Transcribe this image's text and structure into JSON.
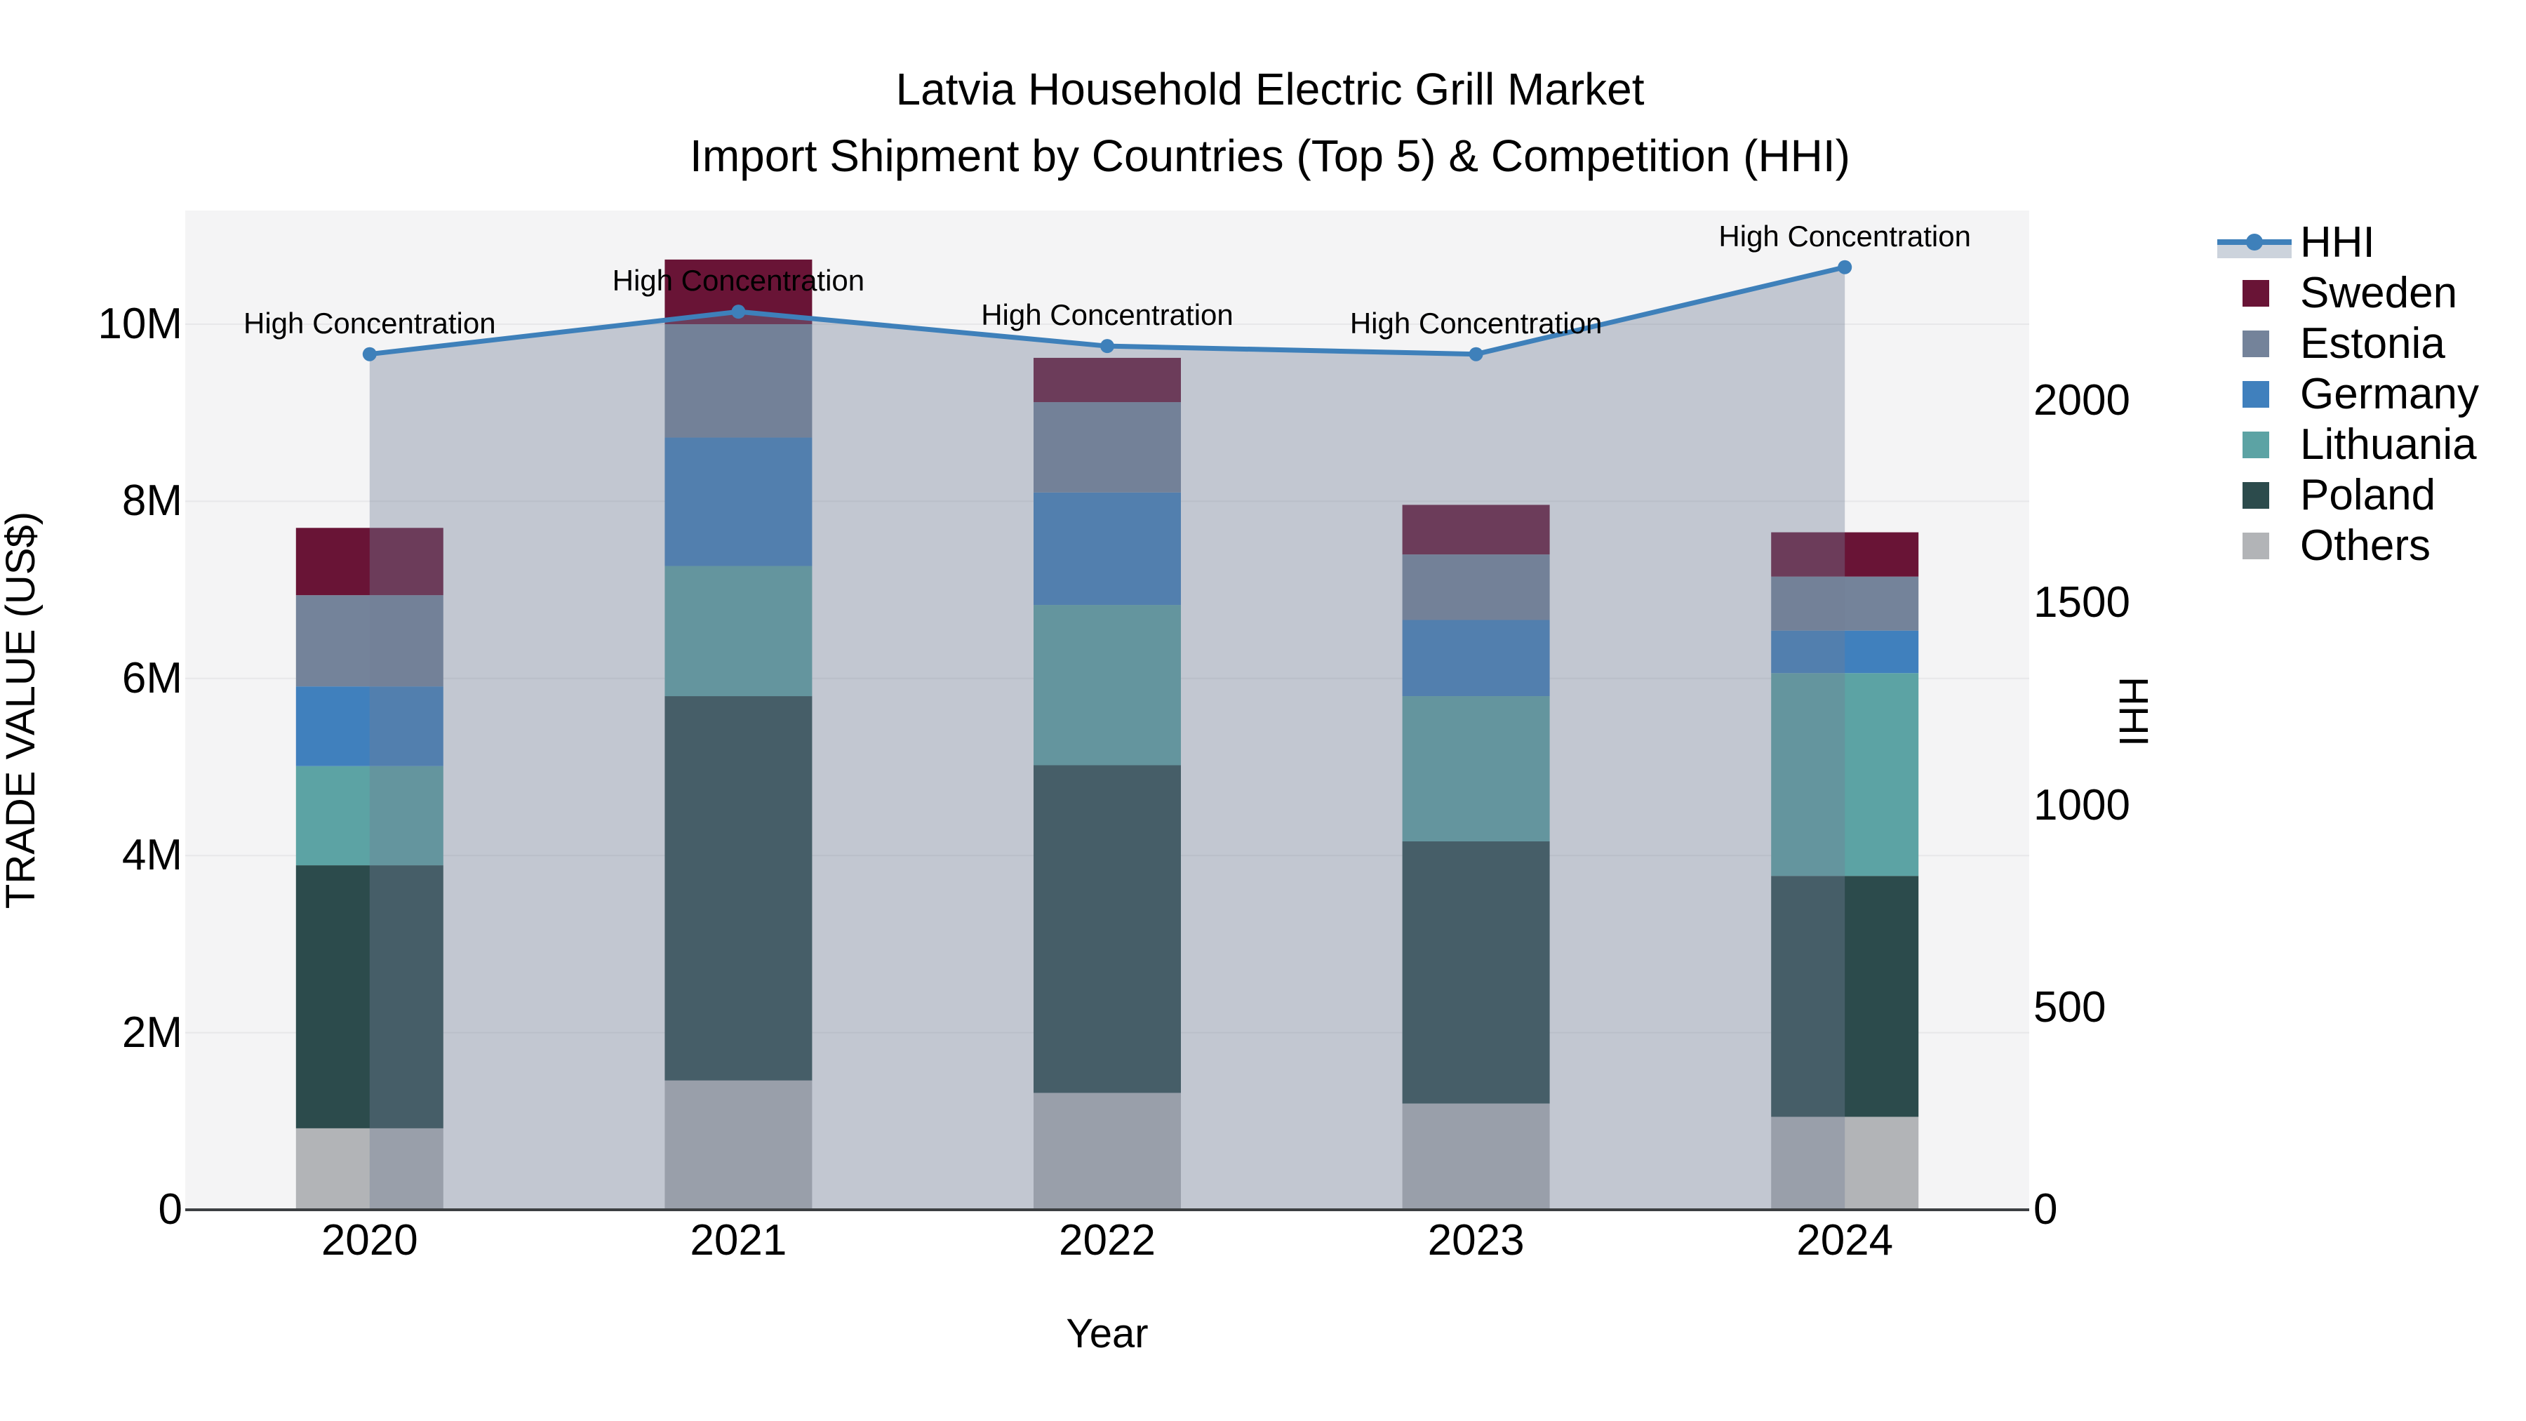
{
  "title": {
    "line1": "Latvia Household Electric Grill Market",
    "line2": "Import Shipment by Countries (Top 5) & Competition (HHI)"
  },
  "axes": {
    "x": {
      "title": "Year",
      "ticks": [
        "2020",
        "2021",
        "2022",
        "2023",
        "2024"
      ]
    },
    "y_left": {
      "title": "TRADE VALUE (US$)",
      "ticks": [
        "0",
        "2M",
        "4M",
        "6M",
        "8M",
        "10M"
      ],
      "tick_values_millions": [
        0,
        2,
        4,
        6,
        8,
        10
      ],
      "range_millions": [
        0,
        11.3
      ]
    },
    "y_right": {
      "title": "HHI",
      "ticks": [
        "0",
        "500",
        "1000",
        "1500",
        "2000"
      ],
      "tick_values": [
        0,
        500,
        1000,
        1500,
        2000
      ],
      "range": [
        0,
        2470
      ]
    }
  },
  "legend": {
    "items": [
      {
        "label": "HHI",
        "type": "line",
        "color": "#3e80ba"
      },
      {
        "label": "Sweden",
        "type": "swatch",
        "color": "#691436"
      },
      {
        "label": "Estonia",
        "type": "swatch",
        "color": "#74839a"
      },
      {
        "label": "Germany",
        "type": "swatch",
        "color": "#4080bd"
      },
      {
        "label": "Lithuania",
        "type": "swatch",
        "color": "#5ca3a4"
      },
      {
        "label": "Poland",
        "type": "swatch",
        "color": "#2c4b4c"
      },
      {
        "label": "Others",
        "type": "swatch",
        "color": "#b2b4b7"
      }
    ]
  },
  "chart_data": {
    "type": "combo: stacked-bar (left axis) + line with markers (right axis)",
    "x": [
      "2020",
      "2021",
      "2022",
      "2023",
      "2024"
    ],
    "bar_unit": "US$ millions",
    "stack_order": "bottom to top",
    "series": [
      {
        "name": "Others",
        "color": "#b2b4b7",
        "values": [
          0.92,
          1.46,
          1.32,
          1.2,
          1.05
        ]
      },
      {
        "name": "Poland",
        "color": "#2c4b4c",
        "values": [
          2.97,
          4.34,
          3.7,
          2.96,
          2.72
        ]
      },
      {
        "name": "Lithuania",
        "color": "#5ca3a4",
        "values": [
          1.12,
          1.47,
          1.81,
          1.64,
          2.29
        ]
      },
      {
        "name": "Germany",
        "color": "#4080bd",
        "values": [
          0.9,
          1.45,
          1.27,
          0.86,
          0.48
        ]
      },
      {
        "name": "Estonia",
        "color": "#74839a",
        "values": [
          1.03,
          1.28,
          1.02,
          0.74,
          0.61
        ]
      },
      {
        "name": "Sweden",
        "color": "#691436",
        "values": [
          0.76,
          0.73,
          0.5,
          0.56,
          0.5
        ]
      }
    ],
    "bar_totals_millions": [
      7.7,
      10.73,
      9.62,
      7.96,
      7.65
    ],
    "line": {
      "name": "HHI",
      "values": [
        2115,
        2220,
        2135,
        2115,
        2330
      ],
      "annotation": "High Concentration",
      "area_fill_under_line": true
    },
    "title": "Latvia Household Electric Grill Market — Import Shipment by Countries (Top 5) & Competition (HHI)",
    "xlabel": "Year",
    "ylabel_left": "TRADE VALUE (US$)",
    "ylabel_right": "HHI",
    "grid": "horizontal, at left-axis 2M intervals",
    "legend_position": "right, outside plot"
  },
  "colors": {
    "figure_bg": "#ffffff",
    "plot_bg": "#f4f4f5",
    "gridline": "#e7e7e9",
    "axis_line": "#3c3f42",
    "hhi_line": "#3e80ba",
    "hhi_area_fill": "rgba(112,126,150,0.38)",
    "hhi_area_legend": "#ccd3dc",
    "text": "#000000"
  }
}
